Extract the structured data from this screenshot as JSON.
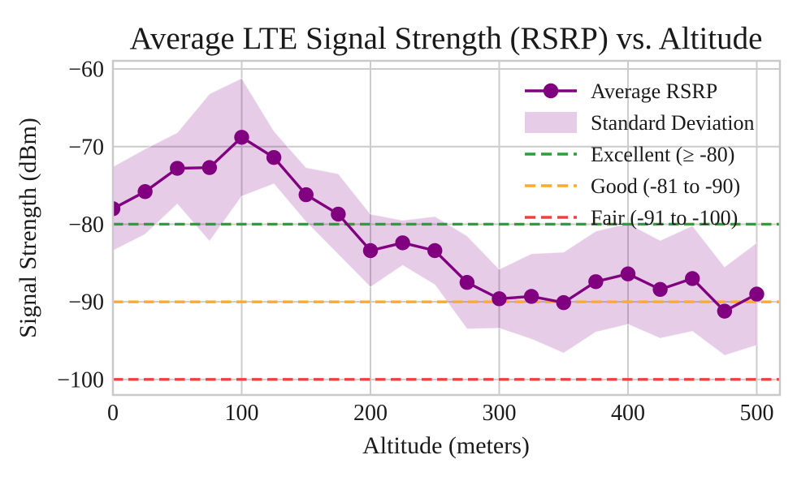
{
  "figure": {
    "background": "#ffffff"
  },
  "chart_data": {
    "type": "line",
    "title": "Average LTE Signal Strength (RSRP) vs. Altitude",
    "xlabel": "Altitude (meters)",
    "ylabel": "Signal Strength (dBm)",
    "x": [
      0,
      25,
      50,
      75,
      100,
      125,
      150,
      175,
      200,
      225,
      250,
      275,
      300,
      325,
      350,
      375,
      400,
      425,
      450,
      475,
      500
    ],
    "series": [
      {
        "name": "Average RSRP",
        "style": "line-markers",
        "color": "#800080",
        "values": [
          -78.0,
          -75.8,
          -72.8,
          -72.7,
          -68.8,
          -71.4,
          -76.2,
          -78.7,
          -83.4,
          -82.4,
          -83.4,
          -87.5,
          -89.6,
          -89.3,
          -90.1,
          -87.4,
          -86.4,
          -88.4,
          -87.0,
          -91.2,
          -89.0
        ]
      },
      {
        "name": "Standard Deviation",
        "style": "band",
        "color": "#800080",
        "fill_opacity": 0.2,
        "std": [
          5.4,
          5.5,
          4.6,
          9.5,
          7.6,
          3.4,
          3.5,
          5.2,
          4.7,
          2.9,
          4.4,
          6.0,
          3.8,
          5.5,
          6.5,
          6.5,
          6.5,
          6.3,
          6.8,
          5.7,
          6.6
        ]
      }
    ],
    "thresholds": [
      {
        "label": "Excellent (≥ -80)",
        "value": -80,
        "color": "#2e9e3c"
      },
      {
        "label": "Good (-81 to -90)",
        "value": -90,
        "color": "#ffaa28"
      },
      {
        "label": "Fair (-91 to -100)",
        "value": -100,
        "color": "#ee4040"
      }
    ],
    "xticks": [
      0,
      100,
      200,
      300,
      400,
      500
    ],
    "yticks": [
      -60,
      -70,
      -80,
      -90,
      -100
    ],
    "xlim": [
      0,
      518
    ],
    "ylim": [
      -102.0,
      -58.95
    ],
    "grid": true,
    "grid_color": "#cccccc",
    "spine_color": "#c9c9c9",
    "text_color": "#1a1a1a",
    "legend_position": "upper right",
    "legend_frame": false
  }
}
